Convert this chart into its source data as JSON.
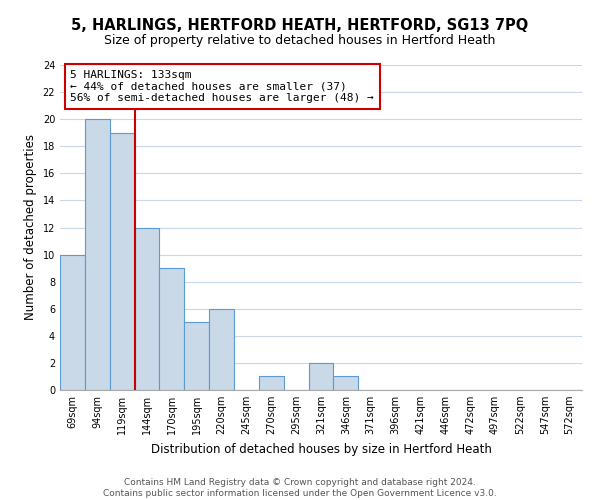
{
  "title": "5, HARLINGS, HERTFORD HEATH, HERTFORD, SG13 7PQ",
  "subtitle": "Size of property relative to detached houses in Hertford Heath",
  "xlabel": "Distribution of detached houses by size in Hertford Heath",
  "ylabel": "Number of detached properties",
  "bar_values": [
    10,
    20,
    19,
    12,
    9,
    5,
    6,
    0,
    1,
    0,
    2,
    1,
    0,
    0,
    0,
    0,
    0,
    0,
    0,
    0,
    0
  ],
  "bin_labels": [
    "69sqm",
    "94sqm",
    "119sqm",
    "144sqm",
    "170sqm",
    "195sqm",
    "220sqm",
    "245sqm",
    "270sqm",
    "295sqm",
    "321sqm",
    "346sqm",
    "371sqm",
    "396sqm",
    "421sqm",
    "446sqm",
    "472sqm",
    "497sqm",
    "522sqm",
    "547sqm",
    "572sqm"
  ],
  "bar_color": "#c9d9e8",
  "bar_edge_color": "#5b9bd5",
  "vline_x": 2.5,
  "vline_color": "#cc0000",
  "annotation_title": "5 HARLINGS: 133sqm",
  "annotation_line1": "← 44% of detached houses are smaller (37)",
  "annotation_line2": "56% of semi-detached houses are larger (48) →",
  "annotation_box_edge": "#cc0000",
  "ylim": [
    0,
    24
  ],
  "yticks": [
    0,
    2,
    4,
    6,
    8,
    10,
    12,
    14,
    16,
    18,
    20,
    22,
    24
  ],
  "footer_line1": "Contains HM Land Registry data © Crown copyright and database right 2024.",
  "footer_line2": "Contains public sector information licensed under the Open Government Licence v3.0.",
  "bg_color": "#ffffff",
  "grid_color": "#c8d8e8",
  "title_fontsize": 10.5,
  "subtitle_fontsize": 9,
  "axis_label_fontsize": 8.5,
  "tick_fontsize": 7,
  "annotation_fontsize": 8,
  "footer_fontsize": 6.5
}
